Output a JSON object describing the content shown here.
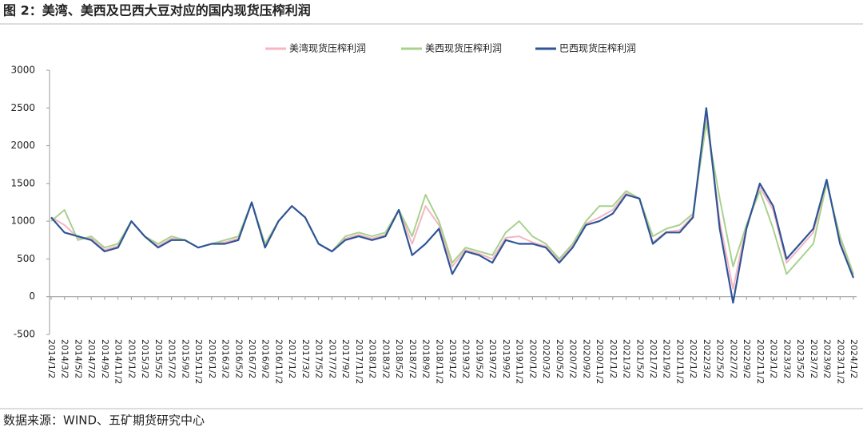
{
  "chart_data": {
    "type": "line",
    "title": "图 2：美湾、美西及巴西大豆对应的国内现货压榨利润",
    "source": "数据来源：WIND、五矿期货研究中心",
    "categories": [
      "2014/1/2",
      "2014/3/2",
      "2014/5/2",
      "2014/7/2",
      "2014/9/2",
      "2014/11/2",
      "2015/1/2",
      "2015/3/2",
      "2015/5/2",
      "2015/7/2",
      "2015/9/2",
      "2015/11/2",
      "2016/1/2",
      "2016/3/2",
      "2016/5/2",
      "2016/7/2",
      "2016/9/2",
      "2016/11/2",
      "2017/1/2",
      "2017/3/2",
      "2017/5/2",
      "2017/7/2",
      "2017/9/2",
      "2017/11/2",
      "2018/1/2",
      "2018/3/2",
      "2018/5/2",
      "2018/7/2",
      "2018/9/2",
      "2018/11/2",
      "2019/1/2",
      "2019/3/2",
      "2019/5/2",
      "2019/7/2",
      "2019/9/2",
      "2019/11/2",
      "2020/1/2",
      "2020/3/2",
      "2020/5/2",
      "2020/7/2",
      "2020/9/2",
      "2020/11/2",
      "2021/1/2",
      "2021/3/2",
      "2021/5/2",
      "2021/7/2",
      "2021/9/2",
      "2021/11/2",
      "2022/1/2",
      "2022/3/2",
      "2022/5/2",
      "2022/7/2",
      "2022/9/2",
      "2022/11/2",
      "2023/1/2",
      "2023/3/2",
      "2023/5/2",
      "2023/7/2",
      "2023/9/2",
      "2023/11/2",
      "2024/1/2"
    ],
    "series": [
      {
        "name": "美湾现货压榨利润",
        "color": "#f4b6c2",
        "values": [
          1050,
          950,
          780,
          770,
          620,
          670,
          1000,
          800,
          670,
          770,
          750,
          650,
          700,
          720,
          770,
          1250,
          670,
          1000,
          1200,
          1050,
          700,
          600,
          770,
          820,
          770,
          820,
          1150,
          700,
          1200,
          950,
          400,
          620,
          570,
          500,
          780,
          800,
          720,
          670,
          470,
          670,
          970,
          1050,
          1150,
          1370,
          1300,
          720,
          860,
          880,
          1070,
          2400,
          1000,
          100,
          950,
          1450,
          1150,
          450,
          650,
          850,
          1520,
          750,
          280
        ]
      },
      {
        "name": "美西现货压榨利润",
        "color": "#a9d18e",
        "values": [
          1000,
          1150,
          750,
          800,
          650,
          700,
          1000,
          800,
          700,
          800,
          750,
          650,
          700,
          750,
          800,
          1250,
          700,
          1000,
          1200,
          1050,
          700,
          600,
          800,
          850,
          800,
          850,
          1150,
          800,
          1350,
          1000,
          450,
          650,
          600,
          550,
          850,
          1000,
          800,
          700,
          500,
          700,
          1000,
          1200,
          1200,
          1400,
          1300,
          800,
          900,
          950,
          1100,
          2300,
          1300,
          400,
          950,
          1400,
          900,
          300,
          500,
          700,
          1500,
          800,
          300
        ]
      },
      {
        "name": "巴西现货压榨利润",
        "color": "#2f5597",
        "values": [
          1050,
          850,
          800,
          750,
          600,
          650,
          1000,
          800,
          650,
          750,
          750,
          650,
          700,
          700,
          750,
          1250,
          650,
          1000,
          1200,
          1050,
          700,
          600,
          750,
          800,
          750,
          800,
          1150,
          550,
          700,
          900,
          300,
          600,
          550,
          450,
          750,
          700,
          700,
          650,
          450,
          650,
          950,
          1000,
          1100,
          1350,
          1300,
          700,
          850,
          850,
          1050,
          2500,
          900,
          -80,
          900,
          1500,
          1200,
          500,
          700,
          900,
          1550,
          700,
          250
        ]
      }
    ],
    "ylim": [
      -500,
      3000
    ],
    "yticks": [
      -500,
      0,
      500,
      1000,
      1500,
      2000,
      2500,
      3000
    ],
    "legend": "top"
  }
}
